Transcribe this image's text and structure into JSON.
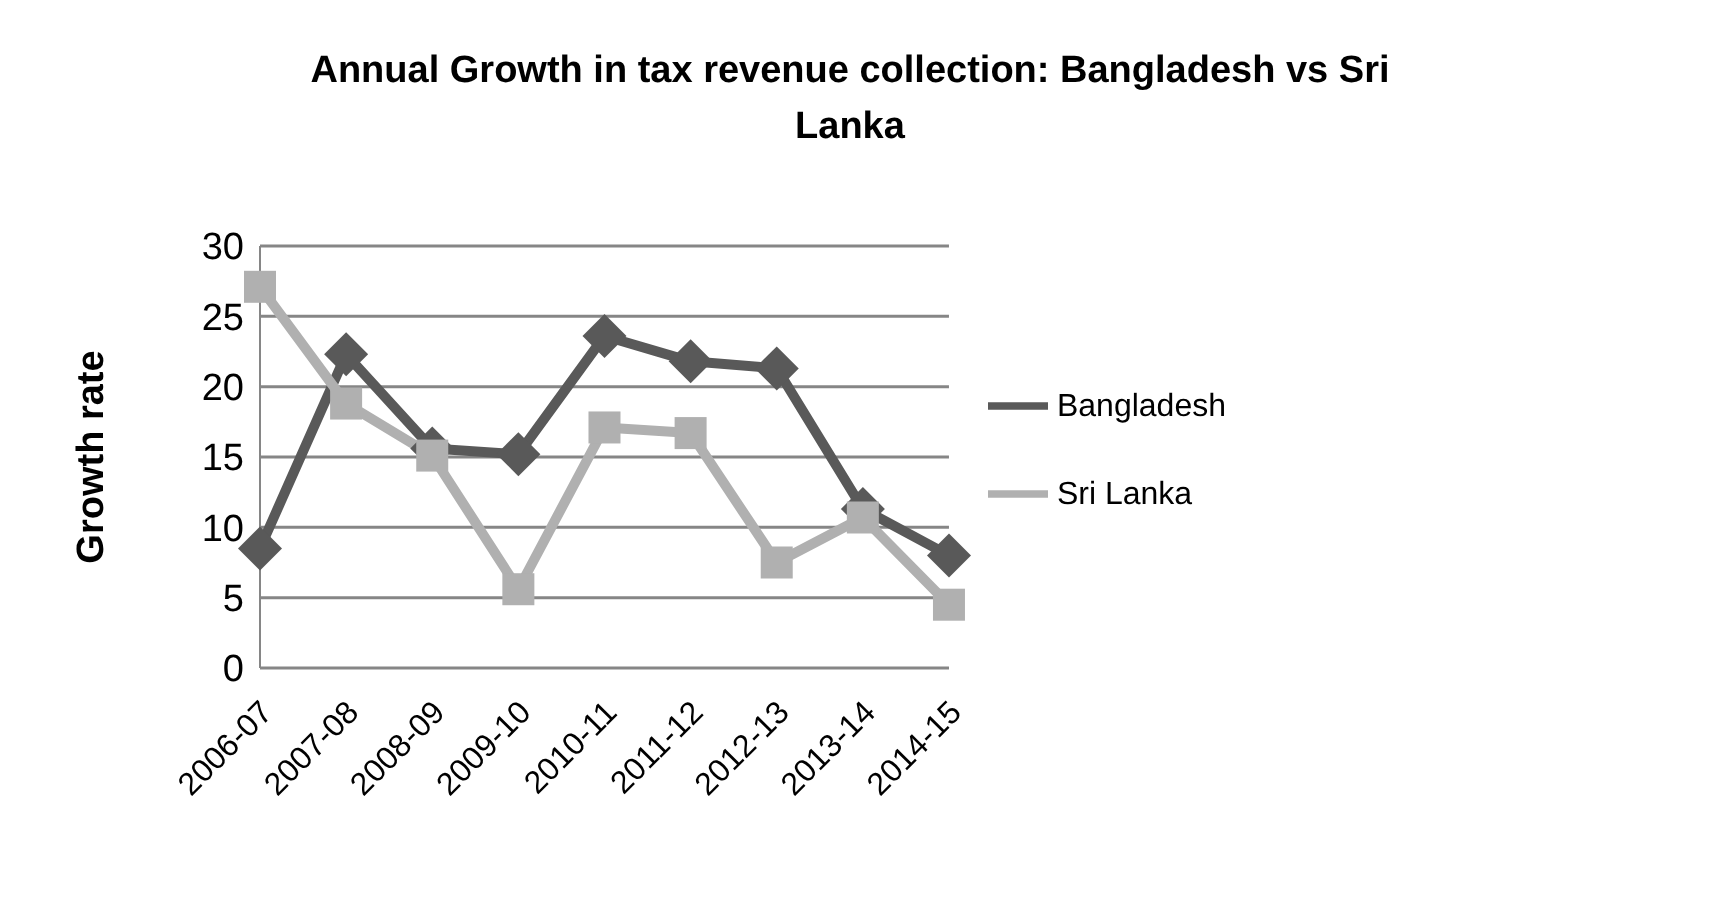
{
  "chart_data": {
    "type": "line",
    "title": "Annual Growth in tax revenue collection: Bangladesh vs Sri Lanka",
    "ylabel": "Growth rate",
    "categories": [
      "2006-07",
      "2007-08",
      "2008-09",
      "2009-10",
      "2010-11",
      "2011-12",
      "2012-13",
      "2013-14",
      "2014-15"
    ],
    "series": [
      {
        "name": "Bangladesh",
        "color": "#595959",
        "marker": "diamond",
        "values": [
          8.5,
          22.3,
          15.6,
          15.2,
          23.6,
          21.8,
          21.3,
          11.3,
          8.0
        ]
      },
      {
        "name": "Sri Lanka",
        "color": "#b0b0b0",
        "marker": "square",
        "values": [
          27.1,
          18.8,
          15.1,
          5.6,
          17.1,
          16.7,
          7.5,
          10.7,
          4.5
        ]
      }
    ],
    "ylim": [
      0,
      30
    ],
    "yticks": [
      0,
      5,
      10,
      15,
      20,
      25,
      30
    ],
    "grid": "y",
    "legend": "right"
  }
}
